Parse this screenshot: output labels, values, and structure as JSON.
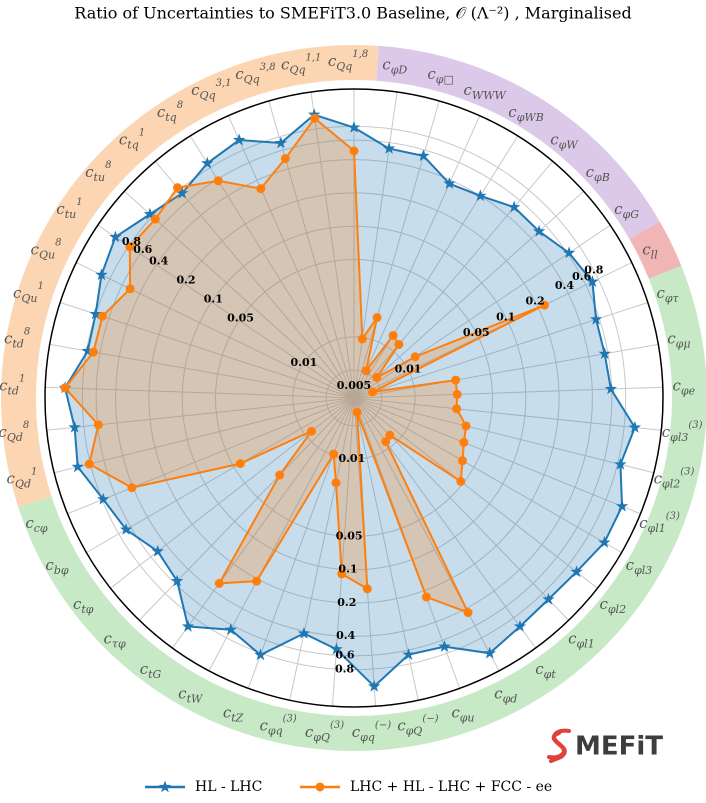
{
  "chart_data": {
    "type": "radar",
    "title": "Ratio of Uncertainties to SMEFiT3.0 Baseline, 𝒪 (Λ⁻²) , Marginalised",
    "categories": [
      "c_φD",
      "c_φ□",
      "c_WWW",
      "c_φWB",
      "c_φW",
      "c_φB",
      "c_φG",
      "c_ll",
      "c_φτ",
      "c_φμ",
      "c_φe",
      "c_φl3^(3)",
      "c_φl2^(3)",
      "c_φl1^(3)",
      "c_φl3",
      "c_φl2",
      "c_φl1",
      "c_φt",
      "c_φd",
      "c_φu",
      "c_φQ^(−)",
      "c_φq^(−)",
      "c_φQ^(3)",
      "c_φq^(3)",
      "c_tZ",
      "c_tW",
      "c_tG",
      "c_τφ",
      "c_tφ",
      "c_bφ",
      "c_cφ",
      "c_Qd^1",
      "c_Qd^8",
      "c_td^1",
      "c_td^8",
      "c_Qu^1",
      "c_Qu^8",
      "c_tu^1",
      "c_tu^8",
      "c_tq^1",
      "c_tq^8",
      "c_Qq^3,1",
      "c_Qq^3,8",
      "c_Qq^1,1",
      "c_Qq^1,8"
    ],
    "category_groups": [
      {
        "color": "#dcc9ea",
        "start": 0,
        "end": 6
      },
      {
        "color": "#f1b5b5",
        "start": 7,
        "end": 7
      },
      {
        "color": "#c7e9c6",
        "start": 8,
        "end": 30
      },
      {
        "color": "#fcd6b2",
        "start": 31,
        "end": 44
      }
    ],
    "series": [
      {
        "name": "HL - LHC",
        "color": "#1f77b4",
        "marker": "star",
        "values": [
          0.53,
          0.53,
          0.37,
          0.4,
          0.5,
          0.5,
          0.62,
          0.7,
          0.56,
          0.56,
          0.59,
          1.0,
          0.85,
          1.15,
          1.15,
          1.0,
          0.95,
          1.0,
          1.15,
          0.69,
          0.66,
          1.15,
          0.53,
          0.42,
          0.83,
          0.66,
          1.0,
          0.56,
          0.5,
          0.67,
          0.78,
          1.05,
          0.97,
          1.15,
          0.78,
          0.8,
          0.97,
          1.12,
          0.85,
          0.73,
          0.89,
          1.0,
          0.7,
          1.08,
          0.78
        ]
      },
      {
        "name": "LHC + HL - LHC + FCC - ee",
        "color": "#ff7f0e",
        "marker": "circle",
        "values": [
          0.0097,
          0.016,
          0.0052,
          0.013,
          0.012,
          0.0053,
          0.013,
          0.23,
          0.0042,
          0.024,
          0.024,
          0.024,
          0.031,
          0.033,
          0.038,
          0.047,
          0.0082,
          0.0086,
          0.44,
          0.23,
          0.0038,
          0.15,
          0.11,
          0.017,
          0.0097,
          0.21,
          0.33,
          0.026,
          0.0086,
          0.043,
          0.41,
          0.82,
          0.59,
          1.15,
          0.69,
          0.69,
          0.5,
          0.78,
          0.73,
          0.85,
          0.58,
          0.33,
          0.5,
          1.0,
          0.48
        ]
      }
    ],
    "rlim": [
      0.0028,
      1.74
    ],
    "log_scale": true,
    "rticks": [
      0.005,
      0.01,
      0.05,
      0.1,
      0.2,
      0.4,
      0.6,
      0.8
    ],
    "grid": true,
    "legend": "bottom",
    "logo": "MEFiT"
  }
}
